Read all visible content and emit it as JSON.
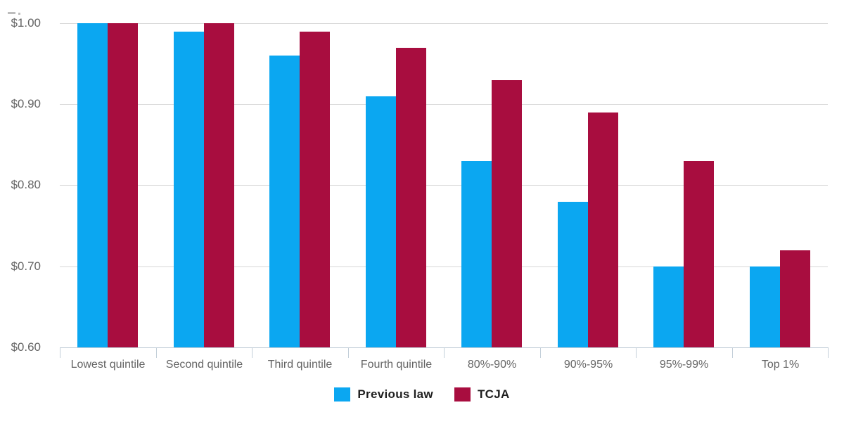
{
  "chart_data": {
    "type": "bar",
    "title": "",
    "xlabel": "",
    "ylabel": "",
    "categories": [
      "Lowest quintile",
      "Second quintile",
      "Third quintile",
      "Fourth quintile",
      "80%-90%",
      "90%-95%",
      "95%-99%",
      "Top 1%"
    ],
    "series": [
      {
        "name": "Previous law",
        "color": "#0ba7f1",
        "values": [
          1.0,
          0.99,
          0.96,
          0.91,
          0.83,
          0.78,
          0.7,
          0.7
        ]
      },
      {
        "name": "TCJA",
        "color": "#a80d3f",
        "values": [
          1.0,
          1.0,
          0.99,
          0.97,
          0.93,
          0.89,
          0.83,
          0.72
        ]
      }
    ],
    "ylim": [
      0.6,
      1.0
    ],
    "ytick_step": 0.1,
    "ytick_labels": [
      "$0.60",
      "$0.70",
      "$0.80",
      "$0.90",
      "$1.00"
    ],
    "grid": "horizontal",
    "legend_position": "bottom"
  },
  "colors": {
    "grid_line": "#d8d8d8",
    "axis_line": "#c3cfd9",
    "axis_text": "#666666",
    "legend_text": "#1f1f1f",
    "background": "#ffffff"
  }
}
